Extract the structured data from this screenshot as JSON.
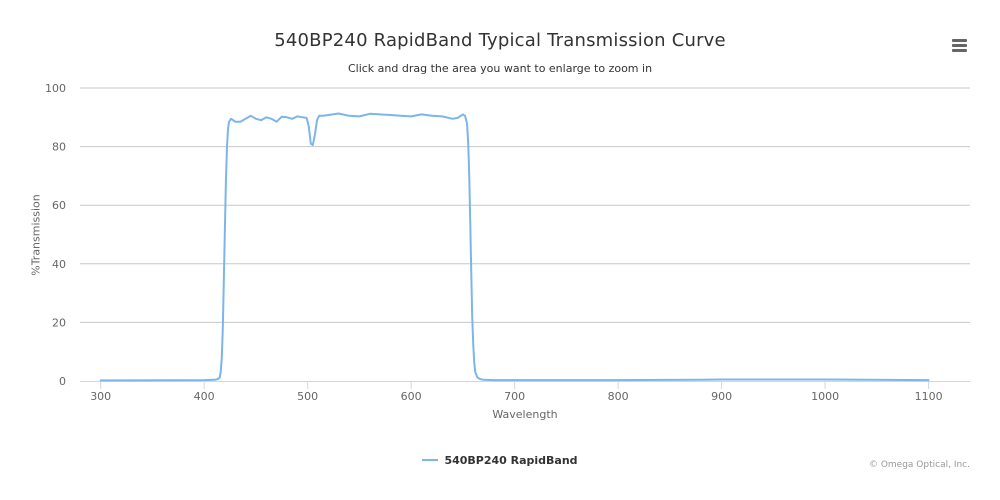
{
  "header": {
    "menu_icon": "hamburger-menu-icon"
  },
  "footer": {
    "credits": "© Omega Optical, Inc."
  },
  "colors": {
    "series": "#7cb5ec",
    "grid": "#c8c8c8",
    "axis": "#ccd6eb",
    "text": "#333333",
    "axis_text": "#666666"
  },
  "chart_data": {
    "type": "line",
    "title": "540BP240 RapidBand Typical Transmission Curve",
    "subtitle": "Click and drag the area you want to enlarge to zoom in",
    "xlabel": "Wavelength",
    "ylabel": "%Transmission",
    "xlim": [
      280,
      1140
    ],
    "ylim": [
      0,
      100
    ],
    "x_ticks": [
      300,
      400,
      500,
      600,
      700,
      800,
      900,
      1000,
      1100
    ],
    "y_ticks": [
      0,
      20,
      40,
      60,
      80,
      100
    ],
    "grid": true,
    "legend_position": "bottom-center",
    "series": [
      {
        "name": "540BP240 RapidBand",
        "color": "#7cb5ec",
        "x": [
          300,
          400,
          410,
          413,
          415,
          416,
          417,
          418,
          419,
          420,
          421,
          422,
          423,
          424,
          426,
          428,
          430,
          435,
          440,
          445,
          450,
          455,
          460,
          465,
          470,
          475,
          480,
          485,
          490,
          495,
          499,
          501,
          503,
          505,
          507,
          509,
          511,
          515,
          520,
          530,
          540,
          550,
          560,
          570,
          580,
          590,
          600,
          610,
          620,
          630,
          640,
          645,
          648,
          650,
          652,
          654,
          655,
          656,
          657,
          658,
          659,
          660,
          661,
          662,
          664,
          667,
          670,
          680,
          700,
          800,
          880,
          900,
          1000,
          1100
        ],
        "y": [
          0.2,
          0.3,
          0.4,
          0.6,
          1.2,
          3,
          8,
          18,
          34,
          52,
          68,
          80,
          86,
          88.5,
          89.5,
          89,
          88.5,
          88.5,
          89.5,
          90.5,
          89.5,
          89,
          90,
          89.5,
          88.5,
          90.2,
          90,
          89.5,
          90.3,
          90,
          89.8,
          87,
          81,
          80.5,
          84,
          89,
          90.5,
          90.5,
          90.8,
          91.3,
          90.5,
          90.3,
          91.2,
          91,
          90.8,
          90.5,
          90.3,
          91,
          90.5,
          90.3,
          89.5,
          89.8,
          90.5,
          91,
          90.5,
          88,
          82,
          72,
          55,
          38,
          22,
          12,
          6,
          3,
          1.2,
          0.6,
          0.4,
          0.3,
          0.3,
          0.3,
          0.4,
          0.5,
          0.5,
          0.3
        ]
      }
    ]
  }
}
